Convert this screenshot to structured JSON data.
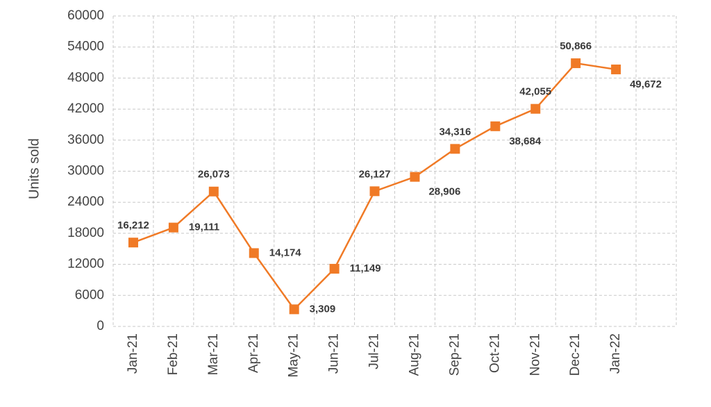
{
  "chart_data": {
    "type": "line",
    "title": "",
    "xlabel": "",
    "ylabel": "Units sold",
    "ylim": [
      0,
      60000
    ],
    "y_ticks": [
      0,
      6000,
      12000,
      18000,
      24000,
      30000,
      36000,
      42000,
      48000,
      54000,
      60000
    ],
    "y_tick_labels": [
      "0",
      "6000",
      "12000",
      "18000",
      "24000",
      "30000",
      "36000",
      "42000",
      "48000",
      "54000",
      "60000"
    ],
    "grid": true,
    "legend": "none",
    "categories": [
      "Jan-21",
      "Feb-21",
      "Mar-21",
      "Apr-21",
      "May-21",
      "Jun-21",
      "Jul-21",
      "Aug-21",
      "Sep-21",
      "Oct-21",
      "Nov-21",
      "Dec-21",
      "Jan-22"
    ],
    "series": [
      {
        "name": "Units sold",
        "color": "#f07a26",
        "marker": "square",
        "values": [
          16212,
          19111,
          26073,
          14174,
          3309,
          11149,
          26127,
          28906,
          34316,
          38684,
          42055,
          50866,
          49672
        ],
        "data_labels": [
          "16,212",
          "19,111",
          "26,073",
          "14,174",
          "3,309",
          "11,149",
          "26,127",
          "28,906",
          "34,316",
          "38,684",
          "42,055",
          "50,866",
          "49,672"
        ],
        "label_positions": [
          "above",
          "right",
          "above",
          "right",
          "right",
          "right",
          "above",
          "below-right",
          "above",
          "below-right",
          "above",
          "above",
          "below-right"
        ]
      }
    ]
  }
}
